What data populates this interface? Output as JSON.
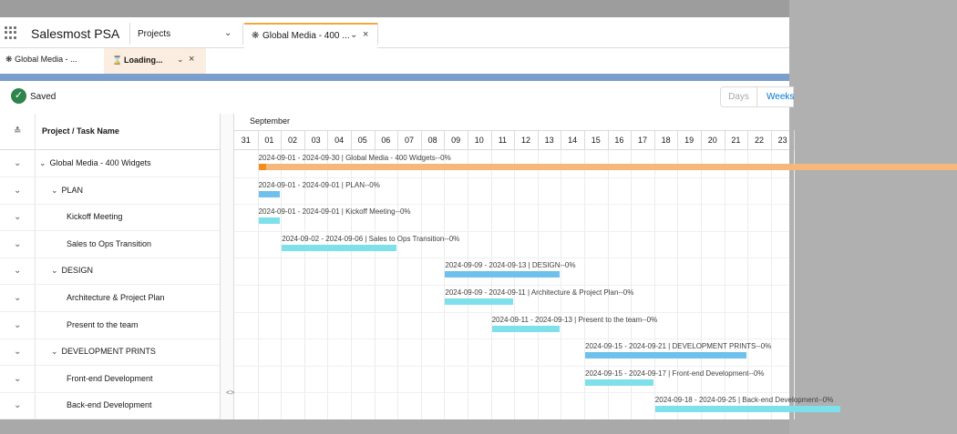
{
  "app": {
    "name": "Salesmost PSA",
    "nav_item": "Projects",
    "tab_title": "Global Media - 400 ...",
    "sub_tabs": [
      {
        "label": "Global Media - ..."
      },
      {
        "label": "Loading..."
      }
    ]
  },
  "status": {
    "saved_label": "Saved"
  },
  "view_buttons": {
    "days": "Days",
    "weeks": "Weeks"
  },
  "grid": {
    "column_title": "Project / Task Name",
    "rows": [
      {
        "name": "Global Media - 400 Widgets",
        "level": 0,
        "group": true
      },
      {
        "name": "PLAN",
        "level": 1,
        "group": true
      },
      {
        "name": "Kickoff Meeting",
        "level": 2,
        "group": false
      },
      {
        "name": "Sales to Ops Transition",
        "level": 2,
        "group": false
      },
      {
        "name": "DESIGN",
        "level": 1,
        "group": true
      },
      {
        "name": "Architecture & Project Plan",
        "level": 2,
        "group": false
      },
      {
        "name": "Present to the team",
        "level": 2,
        "group": false
      },
      {
        "name": "DEVELOPMENT PRINTS",
        "level": 1,
        "group": true
      },
      {
        "name": "Front-end Development",
        "level": 2,
        "group": false
      },
      {
        "name": "Back-end Development",
        "level": 2,
        "group": false
      }
    ]
  },
  "gantt": {
    "month": "September",
    "days": [
      "31",
      "01",
      "02",
      "03",
      "04",
      "05",
      "06",
      "07",
      "08",
      "09",
      "10",
      "11",
      "12",
      "13",
      "14",
      "15",
      "16",
      "17",
      "18",
      "19",
      "20",
      "21",
      "22",
      "23"
    ],
    "first_day": "2024-08-31",
    "colors": {
      "project": "#f5b87a",
      "project_progress": "#f28c1b",
      "summary": "#6ec1ec",
      "task": "#7de0ea"
    },
    "bars": [
      {
        "label": "2024-09-01 - 2024-09-30 | Global Media - 400 Widgets--0%",
        "start": "2024-09-01",
        "end": "2024-09-30",
        "kind": "project"
      },
      {
        "label": "2024-09-01 - 2024-09-01 | PLAN--0%",
        "start": "2024-09-01",
        "end": "2024-09-01",
        "kind": "summary"
      },
      {
        "label": "2024-09-01 - 2024-09-01 | Kickoff Meeting--0%",
        "start": "2024-09-01",
        "end": "2024-09-01",
        "kind": "task"
      },
      {
        "label": "2024-09-02 - 2024-09-06 | Sales to Ops Transition--0%",
        "start": "2024-09-02",
        "end": "2024-09-06",
        "kind": "task"
      },
      {
        "label": "2024-09-09 - 2024-09-13 | DESIGN--0%",
        "start": "2024-09-09",
        "end": "2024-09-13",
        "kind": "summary"
      },
      {
        "label": "2024-09-09 - 2024-09-11 | Architecture & Project Plan--0%",
        "start": "2024-09-09",
        "end": "2024-09-11",
        "kind": "task"
      },
      {
        "label": "2024-09-11 - 2024-09-13 | Present to the team--0%",
        "start": "2024-09-11",
        "end": "2024-09-13",
        "kind": "task"
      },
      {
        "label": "2024-09-15 - 2024-09-21 | DEVELOPMENT PRINTS--0%",
        "start": "2024-09-15",
        "end": "2024-09-21",
        "kind": "summary"
      },
      {
        "label": "2024-09-15 - 2024-09-17 | Front-end Development--0%",
        "start": "2024-09-15",
        "end": "2024-09-17",
        "kind": "task"
      },
      {
        "label": "2024-09-18 - 2024-09-25 | Back-end Development--0%",
        "start": "2024-09-18",
        "end": "2024-09-25",
        "kind": "task"
      }
    ]
  }
}
